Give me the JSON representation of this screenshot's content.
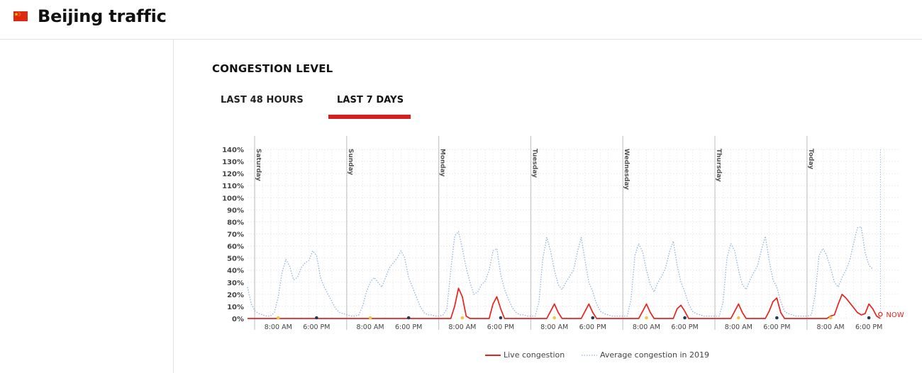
{
  "header": {
    "title": "Beijing traffic",
    "flag_icon": "china-flag-icon"
  },
  "section": {
    "title": "CONGESTION LEVEL"
  },
  "tabs": [
    {
      "label": "LAST 48 HOURS",
      "active": false
    },
    {
      "label": "LAST 7 DAYS",
      "active": true
    }
  ],
  "colors": {
    "accent": "#d71f1f",
    "live": "#e8231f",
    "average": "#8fb4dd",
    "morning_marker": "#f5c242",
    "evening_marker": "#1f3b57"
  },
  "chart_data": {
    "type": "line",
    "ylim": [
      0,
      140
    ],
    "y_ticks": [
      "0%",
      "10%",
      "20%",
      "30%",
      "40%",
      "50%",
      "60%",
      "70%",
      "80%",
      "90%",
      "100%",
      "110%",
      "120%",
      "130%",
      "140%"
    ],
    "days": [
      "Saturday",
      "Sunday",
      "Monday",
      "Tuesday",
      "Wednesday",
      "Thursday",
      "Today"
    ],
    "x_ticks": [
      "8:00 AM",
      "6:00 PM"
    ],
    "now_label": "NOW",
    "grid": true,
    "legend_position": "bottom",
    "series": [
      {
        "name": "Average congestion in 2019",
        "style": "dotted",
        "values": [
          [
            0,
            26
          ],
          [
            1,
            12
          ],
          [
            2,
            6
          ],
          [
            3,
            4
          ],
          [
            4,
            3
          ],
          [
            5,
            2
          ],
          [
            6,
            2
          ],
          [
            7,
            5
          ],
          [
            8,
            18
          ],
          [
            9,
            38
          ],
          [
            10,
            49
          ],
          [
            11,
            43
          ],
          [
            12,
            32
          ],
          [
            13,
            34
          ],
          [
            14,
            42
          ],
          [
            15,
            46
          ],
          [
            16,
            48
          ],
          [
            17,
            56
          ],
          [
            18,
            52
          ],
          [
            19,
            34
          ],
          [
            20,
            26
          ],
          [
            21,
            20
          ],
          [
            22,
            14
          ],
          [
            23,
            8
          ],
          [
            24,
            5
          ],
          [
            25,
            4
          ],
          [
            26,
            3
          ],
          [
            27,
            2
          ],
          [
            28,
            2
          ],
          [
            29,
            3
          ],
          [
            30,
            10
          ],
          [
            31,
            22
          ],
          [
            32,
            30
          ],
          [
            33,
            34
          ],
          [
            34,
            30
          ],
          [
            35,
            26
          ],
          [
            36,
            34
          ],
          [
            37,
            42
          ],
          [
            38,
            46
          ],
          [
            39,
            50
          ],
          [
            40,
            56
          ],
          [
            41,
            50
          ],
          [
            42,
            34
          ],
          [
            43,
            26
          ],
          [
            44,
            18
          ],
          [
            45,
            10
          ],
          [
            46,
            5
          ],
          [
            47,
            3
          ],
          [
            48,
            3
          ],
          [
            49,
            2
          ],
          [
            50,
            2
          ],
          [
            51,
            3
          ],
          [
            52,
            8
          ],
          [
            53,
            40
          ],
          [
            54,
            68
          ],
          [
            55,
            72
          ],
          [
            56,
            58
          ],
          [
            57,
            42
          ],
          [
            58,
            30
          ],
          [
            59,
            20
          ],
          [
            60,
            22
          ],
          [
            61,
            28
          ],
          [
            62,
            31
          ],
          [
            63,
            40
          ],
          [
            64,
            56
          ],
          [
            65,
            58
          ],
          [
            66,
            36
          ],
          [
            67,
            24
          ],
          [
            68,
            16
          ],
          [
            69,
            9
          ],
          [
            70,
            5
          ],
          [
            71,
            3
          ],
          [
            72,
            3
          ],
          [
            73,
            2
          ],
          [
            74,
            2
          ],
          [
            75,
            2
          ],
          [
            76,
            14
          ],
          [
            77,
            50
          ],
          [
            78,
            67
          ],
          [
            79,
            56
          ],
          [
            80,
            40
          ],
          [
            81,
            28
          ],
          [
            82,
            24
          ],
          [
            83,
            30
          ],
          [
            84,
            35
          ],
          [
            85,
            40
          ],
          [
            86,
            55
          ],
          [
            87,
            67
          ],
          [
            88,
            48
          ],
          [
            89,
            30
          ],
          [
            90,
            22
          ],
          [
            91,
            12
          ],
          [
            92,
            6
          ],
          [
            93,
            4
          ],
          [
            94,
            3
          ],
          [
            95,
            2
          ],
          [
            96,
            2
          ],
          [
            97,
            2
          ],
          [
            98,
            2
          ],
          [
            99,
            2
          ],
          [
            100,
            16
          ],
          [
            101,
            52
          ],
          [
            102,
            62
          ],
          [
            103,
            55
          ],
          [
            104,
            40
          ],
          [
            105,
            28
          ],
          [
            106,
            22
          ],
          [
            107,
            30
          ],
          [
            108,
            35
          ],
          [
            109,
            42
          ],
          [
            110,
            55
          ],
          [
            111,
            64
          ],
          [
            112,
            44
          ],
          [
            113,
            30
          ],
          [
            114,
            22
          ],
          [
            115,
            12
          ],
          [
            116,
            6
          ],
          [
            117,
            4
          ],
          [
            118,
            3
          ],
          [
            119,
            2
          ],
          [
            120,
            2
          ],
          [
            121,
            2
          ],
          [
            122,
            2
          ],
          [
            123,
            2
          ],
          [
            124,
            14
          ],
          [
            125,
            50
          ],
          [
            126,
            62
          ],
          [
            127,
            56
          ],
          [
            128,
            40
          ],
          [
            129,
            28
          ],
          [
            130,
            24
          ],
          [
            131,
            32
          ],
          [
            132,
            38
          ],
          [
            133,
            44
          ],
          [
            134,
            57
          ],
          [
            135,
            68
          ],
          [
            136,
            48
          ],
          [
            137,
            32
          ],
          [
            138,
            26
          ],
          [
            139,
            14
          ],
          [
            140,
            6
          ],
          [
            141,
            4
          ],
          [
            142,
            3
          ],
          [
            143,
            2
          ],
          [
            144,
            2
          ],
          [
            145,
            2
          ],
          [
            146,
            2
          ],
          [
            147,
            3
          ],
          [
            148,
            20
          ],
          [
            149,
            52
          ],
          [
            150,
            58
          ],
          [
            151,
            52
          ],
          [
            152,
            42
          ],
          [
            153,
            30
          ],
          [
            154,
            26
          ],
          [
            155,
            34
          ],
          [
            156,
            40
          ],
          [
            157,
            48
          ],
          [
            158,
            62
          ],
          [
            159,
            75
          ],
          [
            160,
            76
          ],
          [
            161,
            55
          ],
          [
            162,
            44
          ],
          [
            163,
            41
          ]
        ]
      },
      {
        "name": "Live congestion",
        "style": "solid",
        "values": [
          [
            0,
            0
          ],
          [
            53,
            0
          ],
          [
            54,
            10
          ],
          [
            55,
            25
          ],
          [
            56,
            18
          ],
          [
            57,
            2
          ],
          [
            58,
            0
          ],
          [
            63,
            0
          ],
          [
            64,
            12
          ],
          [
            65,
            18
          ],
          [
            66,
            8
          ],
          [
            67,
            0
          ],
          [
            78,
            0
          ],
          [
            79,
            6
          ],
          [
            80,
            12
          ],
          [
            81,
            5
          ],
          [
            82,
            0
          ],
          [
            87,
            0
          ],
          [
            88,
            6
          ],
          [
            89,
            12
          ],
          [
            90,
            5
          ],
          [
            91,
            0
          ],
          [
            102,
            0
          ],
          [
            103,
            6
          ],
          [
            104,
            12
          ],
          [
            105,
            5
          ],
          [
            106,
            0
          ],
          [
            111,
            0
          ],
          [
            112,
            8
          ],
          [
            113,
            11
          ],
          [
            114,
            6
          ],
          [
            115,
            0
          ],
          [
            126,
            0
          ],
          [
            127,
            6
          ],
          [
            128,
            12
          ],
          [
            129,
            5
          ],
          [
            130,
            0
          ],
          [
            135,
            0
          ],
          [
            136,
            6
          ],
          [
            137,
            14
          ],
          [
            138,
            17
          ],
          [
            139,
            5
          ],
          [
            140,
            0
          ],
          [
            150,
            0
          ],
          [
            151,
            0
          ],
          [
            152,
            2
          ],
          [
            153,
            3
          ],
          [
            154,
            12
          ],
          [
            155,
            20
          ],
          [
            156,
            17
          ],
          [
            157,
            13
          ],
          [
            158,
            9
          ],
          [
            159,
            5
          ],
          [
            160,
            3
          ],
          [
            161,
            4
          ],
          [
            162,
            12
          ],
          [
            163,
            8
          ],
          [
            164,
            2
          ],
          [
            165,
            0
          ]
        ]
      }
    ]
  },
  "legend": {
    "live_label": "Live congestion",
    "average_label": "Average congestion in 2019"
  }
}
